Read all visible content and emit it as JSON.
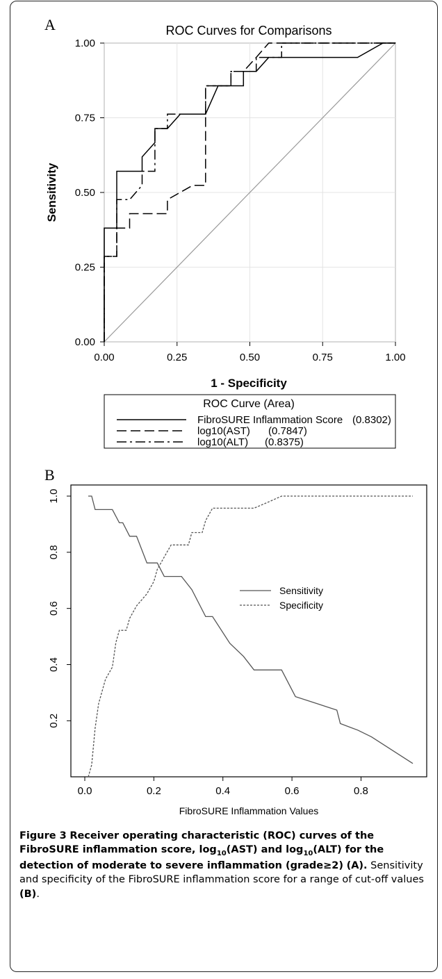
{
  "panel_a": {
    "letter": "A",
    "legend_title": "ROC Curve (Area)",
    "legend_entries": [
      {
        "label": "FibroSURE Inflammation Score",
        "area": "(0.8302)",
        "style": "solid"
      },
      {
        "label": "log10(AST)",
        "area": "(0.7847)",
        "style": "dashed"
      },
      {
        "label": "log10(ALT)",
        "area": "(0.8375)",
        "style": "dashdot"
      }
    ]
  },
  "panel_b": {
    "letter": "B"
  },
  "caption": {
    "figure_label": "Figure 3",
    "bold_1": "Receiver operating characteristic (ROC) curves of the FibroSURE inflammation score, log",
    "sub_1": "10",
    "bold_2": "(AST) and log",
    "sub_2": "10",
    "bold_3": "(ALT) for the detection of moderate to severe inflammation (grade≥2)",
    "ref_a": "(A).",
    "normal_1": " Sensitivity and specificity of the FibroSURE inflammation score for a range of cut-off values ",
    "ref_b": "(B)",
    "normal_2": "."
  },
  "chart_data": [
    {
      "type": "line",
      "title": "ROC Curves for Comparisons",
      "xlabel": "1 - Specificity",
      "ylabel": "Sensitivity",
      "xlim": [
        0,
        1
      ],
      "ylim": [
        0,
        1
      ],
      "xticks": [
        "0.00",
        "0.25",
        "0.50",
        "0.75",
        "1.00"
      ],
      "yticks": [
        "0.00",
        "0.25",
        "0.50",
        "0.75",
        "1.00"
      ],
      "grid": true,
      "reference_line": "diagonal",
      "series": [
        {
          "name": "FibroSURE Inflammation Score",
          "style": "solid",
          "points": [
            [
              0,
              0
            ],
            [
              0,
              0.381
            ],
            [
              0.043,
              0.381
            ],
            [
              0.043,
              0.571
            ],
            [
              0.13,
              0.571
            ],
            [
              0.13,
              0.619
            ],
            [
              0.174,
              0.667
            ],
            [
              0.174,
              0.714
            ],
            [
              0.217,
              0.714
            ],
            [
              0.217,
              0.714
            ],
            [
              0.261,
              0.762
            ],
            [
              0.348,
              0.762
            ],
            [
              0.391,
              0.857
            ],
            [
              0.478,
              0.857
            ],
            [
              0.478,
              0.905
            ],
            [
              0.522,
              0.905
            ],
            [
              0.565,
              0.952
            ],
            [
              0.87,
              0.952
            ],
            [
              0.957,
              1
            ],
            [
              1,
              1
            ]
          ]
        },
        {
          "name": "log10(AST)",
          "style": "dashed",
          "points": [
            [
              0,
              0
            ],
            [
              0,
              0.286
            ],
            [
              0.043,
              0.286
            ],
            [
              0.043,
              0.381
            ],
            [
              0.087,
              0.381
            ],
            [
              0.087,
              0.429
            ],
            [
              0.217,
              0.429
            ],
            [
              0.217,
              0.476
            ],
            [
              0.304,
              0.524
            ],
            [
              0.348,
              0.524
            ],
            [
              0.348,
              0.857
            ],
            [
              0.435,
              0.857
            ],
            [
              0.435,
              0.905
            ],
            [
              0.478,
              0.905
            ],
            [
              0.522,
              0.952
            ],
            [
              0.565,
              1
            ],
            [
              1,
              1
            ]
          ]
        },
        {
          "name": "log10(ALT)",
          "style": "dashdot",
          "points": [
            [
              0,
              0
            ],
            [
              0,
              0.286
            ],
            [
              0.043,
              0.286
            ],
            [
              0.043,
              0.476
            ],
            [
              0.087,
              0.476
            ],
            [
              0.13,
              0.524
            ],
            [
              0.13,
              0.571
            ],
            [
              0.174,
              0.571
            ],
            [
              0.174,
              0.714
            ],
            [
              0.217,
              0.714
            ],
            [
              0.217,
              0.762
            ],
            [
              0.348,
              0.762
            ],
            [
              0.348,
              0.857
            ],
            [
              0.435,
              0.857
            ],
            [
              0.435,
              0.905
            ],
            [
              0.522,
              0.905
            ],
            [
              0.522,
              0.952
            ],
            [
              0.609,
              0.952
            ],
            [
              0.609,
              1
            ],
            [
              1,
              1
            ]
          ]
        }
      ]
    },
    {
      "type": "line",
      "xlabel": "FibroSURE Inflammation Values",
      "ylabel": "",
      "xlim": [
        0,
        0.95
      ],
      "ylim": [
        0.04,
        1.0
      ],
      "xticks": [
        "0.0",
        "0.2",
        "0.4",
        "0.6",
        "0.8"
      ],
      "yticks": [
        "0.2",
        "0.4",
        "0.6",
        "0.8",
        "1.0"
      ],
      "grid": false,
      "legend_position": "right",
      "series": [
        {
          "name": "Sensitivity",
          "style": "solid",
          "x": [
            0.01,
            0.02,
            0.03,
            0.07,
            0.08,
            0.1,
            0.11,
            0.13,
            0.15,
            0.18,
            0.2,
            0.21,
            0.23,
            0.27,
            0.28,
            0.31,
            0.35,
            0.37,
            0.42,
            0.46,
            0.49,
            0.53,
            0.57,
            0.61,
            0.67,
            0.73,
            0.74,
            0.79,
            0.83,
            0.95
          ],
          "y": [
            1.0,
            1.0,
            0.952,
            0.952,
            0.952,
            0.905,
            0.905,
            0.857,
            0.857,
            0.762,
            0.762,
            0.762,
            0.714,
            0.714,
            0.714,
            0.667,
            0.571,
            0.571,
            0.476,
            0.429,
            0.381,
            0.381,
            0.381,
            0.286,
            0.262,
            0.238,
            0.19,
            0.167,
            0.143,
            0.048
          ]
        },
        {
          "name": "Specificity",
          "style": "dotted",
          "x": [
            0.01,
            0.02,
            0.03,
            0.04,
            0.06,
            0.08,
            0.09,
            0.1,
            0.11,
            0.12,
            0.13,
            0.15,
            0.18,
            0.2,
            0.21,
            0.23,
            0.25,
            0.28,
            0.3,
            0.31,
            0.33,
            0.34,
            0.35,
            0.37,
            0.38,
            0.4,
            0.42,
            0.49,
            0.53,
            0.57,
            0.6,
            0.7,
            0.8,
            0.95
          ],
          "y": [
            0.0,
            0.043,
            0.174,
            0.261,
            0.348,
            0.391,
            0.478,
            0.522,
            0.522,
            0.522,
            0.565,
            0.609,
            0.652,
            0.696,
            0.739,
            0.783,
            0.826,
            0.826,
            0.826,
            0.87,
            0.87,
            0.87,
            0.913,
            0.957,
            0.957,
            0.957,
            0.957,
            0.957,
            0.978,
            1.0,
            1.0,
            1.0,
            1.0,
            1.0
          ]
        }
      ]
    }
  ]
}
